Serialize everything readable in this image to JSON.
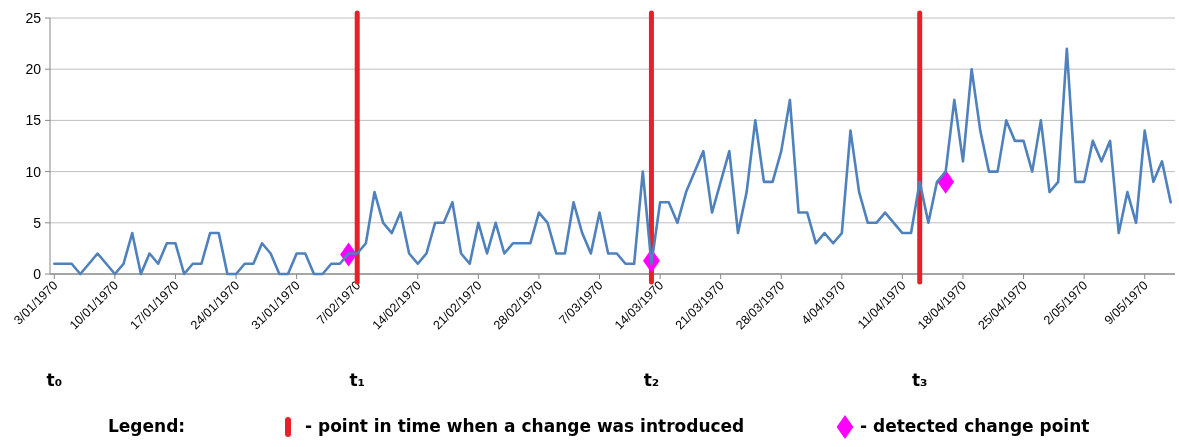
{
  "chart_data": {
    "type": "line",
    "xlim": [
      "1970-01-02T12:00",
      "1970-05-12T12:00"
    ],
    "ylim": [
      0,
      25
    ],
    "yticks": [
      0,
      5,
      10,
      15,
      20,
      25
    ],
    "grid": "y",
    "legend": "bottom",
    "legend_title": "Legend:",
    "xticks": [
      {
        "value": "1970-01-03",
        "label": "3/01/1970"
      },
      {
        "value": "1970-01-10",
        "label": "10/01/1970"
      },
      {
        "value": "1970-01-17",
        "label": "17/01/1970"
      },
      {
        "value": "1970-01-24",
        "label": "24/01/1970"
      },
      {
        "value": "1970-01-31",
        "label": "31/01/1970"
      },
      {
        "value": "1970-02-07",
        "label": "7/02/1970"
      },
      {
        "value": "1970-02-14",
        "label": "14/02/1970"
      },
      {
        "value": "1970-02-21",
        "label": "21/02/1970"
      },
      {
        "value": "1970-02-28",
        "label": "28/02/1970"
      },
      {
        "value": "1970-03-07",
        "label": "7/03/1970"
      },
      {
        "value": "1970-03-14",
        "label": "14/03/1970"
      },
      {
        "value": "1970-03-21",
        "label": "21/03/1970"
      },
      {
        "value": "1970-03-28",
        "label": "28/03/1970"
      },
      {
        "value": "1970-04-04",
        "label": "4/04/1970"
      },
      {
        "value": "1970-04-11",
        "label": "11/04/1970"
      },
      {
        "value": "1970-04-18",
        "label": "18/04/1970"
      },
      {
        "value": "1970-04-25",
        "label": "25/04/1970"
      },
      {
        "value": "1970-05-02",
        "label": "2/05/1970"
      },
      {
        "value": "1970-05-09",
        "label": "9/05/1970"
      }
    ],
    "x": [
      "1970-01-03",
      "1970-01-04",
      "1970-01-05",
      "1970-01-06",
      "1970-01-07",
      "1970-01-08",
      "1970-01-09",
      "1970-01-10",
      "1970-01-11",
      "1970-01-12",
      "1970-01-13",
      "1970-01-14",
      "1970-01-15",
      "1970-01-16",
      "1970-01-17",
      "1970-01-18",
      "1970-01-19",
      "1970-01-20",
      "1970-01-21",
      "1970-01-22",
      "1970-01-23",
      "1970-01-24",
      "1970-01-25",
      "1970-01-26",
      "1970-01-27",
      "1970-01-28",
      "1970-01-29",
      "1970-01-30",
      "1970-01-31",
      "1970-02-01",
      "1970-02-02",
      "1970-02-03",
      "1970-02-04",
      "1970-02-05",
      "1970-02-06",
      "1970-02-07",
      "1970-02-08",
      "1970-02-09",
      "1970-02-10",
      "1970-02-11",
      "1970-02-12",
      "1970-02-13",
      "1970-02-14",
      "1970-02-15",
      "1970-02-16",
      "1970-02-17",
      "1970-02-18",
      "1970-02-19",
      "1970-02-20",
      "1970-02-21",
      "1970-02-22",
      "1970-02-23",
      "1970-02-24",
      "1970-02-25",
      "1970-02-26",
      "1970-02-27",
      "1970-02-28",
      "1970-03-01",
      "1970-03-02",
      "1970-03-03",
      "1970-03-04",
      "1970-03-05",
      "1970-03-06",
      "1970-03-07",
      "1970-03-08",
      "1970-03-09",
      "1970-03-10",
      "1970-03-11",
      "1970-03-12",
      "1970-03-13",
      "1970-03-14",
      "1970-03-15",
      "1970-03-16",
      "1970-03-17",
      "1970-03-18",
      "1970-03-19",
      "1970-03-20",
      "1970-03-21",
      "1970-03-22",
      "1970-03-23",
      "1970-03-24",
      "1970-03-25",
      "1970-03-26",
      "1970-03-27",
      "1970-03-28",
      "1970-03-29",
      "1970-03-30",
      "1970-03-31",
      "1970-04-01",
      "1970-04-02",
      "1970-04-03",
      "1970-04-04",
      "1970-04-05",
      "1970-04-06",
      "1970-04-07",
      "1970-04-08",
      "1970-04-09",
      "1970-04-10",
      "1970-04-11",
      "1970-04-12",
      "1970-04-13",
      "1970-04-14",
      "1970-04-15",
      "1970-04-16",
      "1970-04-17",
      "1970-04-18",
      "1970-04-19",
      "1970-04-20",
      "1970-04-21",
      "1970-04-22",
      "1970-04-23",
      "1970-04-24",
      "1970-04-25",
      "1970-04-26",
      "1970-04-27",
      "1970-04-28",
      "1970-04-29",
      "1970-04-30",
      "1970-05-01",
      "1970-05-02",
      "1970-05-03",
      "1970-05-04",
      "1970-05-05",
      "1970-05-06",
      "1970-05-07",
      "1970-05-08",
      "1970-05-09",
      "1970-05-10",
      "1970-05-11",
      "1970-05-12"
    ],
    "series": [
      {
        "color": "#4f81bd",
        "marker": "none",
        "values": [
          1,
          1,
          1,
          0,
          1,
          2,
          1,
          0,
          1,
          4,
          0,
          2,
          1,
          3,
          3,
          0,
          1,
          1,
          4,
          4,
          0,
          0,
          1,
          1,
          3,
          2,
          0,
          0,
          2,
          2,
          0,
          0,
          1,
          1,
          2,
          2,
          3,
          8,
          5,
          4,
          6,
          2,
          1,
          2,
          5,
          5,
          7,
          2,
          1,
          5,
          2,
          5,
          2,
          3,
          3,
          3,
          6,
          5,
          2,
          2,
          7,
          4,
          2,
          6,
          2,
          2,
          1,
          1,
          10,
          1,
          7,
          7,
          5,
          8,
          10,
          12,
          6,
          9,
          12,
          4,
          8,
          15,
          9,
          9,
          12,
          17,
          6,
          6,
          3,
          4,
          3,
          4,
          14,
          8,
          5,
          5,
          6,
          5,
          4,
          4,
          9,
          5,
          9,
          10,
          17,
          11,
          20,
          14,
          10,
          10,
          15,
          13,
          13,
          10,
          15,
          8,
          9,
          22,
          9,
          9,
          13,
          11,
          13,
          4,
          8,
          5,
          14,
          9,
          11,
          7
        ]
      },
      {
        "type": "scatter",
        "name": "- detected change point",
        "color": "#ff00ff",
        "marker": "diamond",
        "x": [
          "1970-02-06",
          "1970-03-13",
          "1970-04-16"
        ],
        "values": [
          1.9,
          1.3,
          9
        ]
      }
    ],
    "ref_lines": [
      {
        "axis": "x",
        "value": "1970-02-07",
        "color": "#e8202a"
      },
      {
        "axis": "x",
        "value": "1970-03-13",
        "color": "#e8202a"
      },
      {
        "axis": "x",
        "value": "1970-04-13",
        "color": "#e8202a"
      }
    ],
    "annotations": [
      "t₀",
      "t₁",
      "t₂",
      "t₃",
      "- point in time when a change was introduced"
    ]
  }
}
